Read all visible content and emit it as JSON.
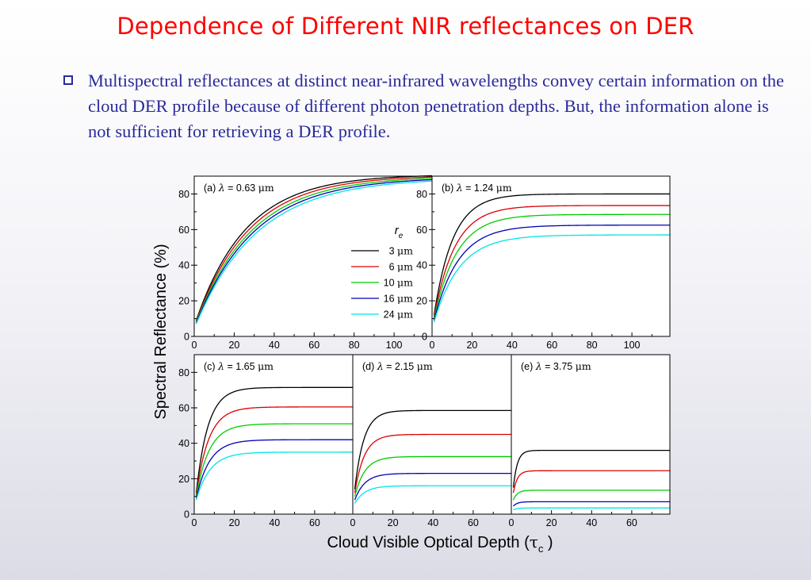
{
  "slide": {
    "title": "Dependence of Different NIR reflectances on DER",
    "bullet": "Multispectral reflectances at distinct near-infrared wavelengths convey certain information on the cloud DER profile because of different photon penetration depths. But, the information alone is not sufficient for retrieving a DER profile."
  },
  "figure": {
    "ylabel": "Spectral  Reflectance  (%)",
    "xlabel_main": "Cloud Visible Optical Depth (",
    "xlabel_tau": "τ",
    "xlabel_sub": "c",
    "xlabel_close": " )",
    "legend_title": "r",
    "legend_title_sub": "e"
  },
  "chart_data": [
    {
      "type": "line",
      "panel": "(a)",
      "lambda": "0.63",
      "unit": "μm",
      "title": "(a) λ = 0.63 μm",
      "xlim": [
        0,
        119
      ],
      "ylim": [
        0,
        90
      ],
      "xticks": [
        0,
        20,
        40,
        60,
        80,
        100
      ],
      "yticks": [
        0,
        20,
        40,
        60,
        80
      ],
      "legend_placement": "center-right",
      "series": [
        {
          "name": "3 μm",
          "color": "#000000",
          "plateau": 91.0,
          "k": 0.0395,
          "y0": 9.0
        },
        {
          "name": "6 μm",
          "color": "#dd0000",
          "plateau": 90.5,
          "k": 0.0375,
          "y0": 8.5
        },
        {
          "name": "10 μm",
          "color": "#00cc00",
          "plateau": 90.0,
          "k": 0.0355,
          "y0": 8.0
        },
        {
          "name": "16 μm",
          "color": "#0000bb",
          "plateau": 89.5,
          "k": 0.034,
          "y0": 7.5
        },
        {
          "name": "24 μm",
          "color": "#00e5e5",
          "plateau": 89.0,
          "k": 0.0325,
          "y0": 7.0
        }
      ]
    },
    {
      "type": "line",
      "panel": "(b)",
      "lambda": "1.24",
      "unit": "μm",
      "title": "(b) λ = 1.24 μm",
      "xlim": [
        0,
        119
      ],
      "ylim": [
        0,
        90
      ],
      "xticks": [
        0,
        20,
        40,
        60,
        80,
        100
      ],
      "yticks": [
        0,
        20,
        40,
        60,
        80
      ],
      "series": [
        {
          "name": "3 μm",
          "color": "#000000",
          "plateau": 80.0,
          "k": 0.105,
          "y0": 12.0
        },
        {
          "name": "6 μm",
          "color": "#dd0000",
          "plateau": 73.5,
          "k": 0.095,
          "y0": 11.0
        },
        {
          "name": "10 μm",
          "color": "#00cc00",
          "plateau": 68.5,
          "k": 0.088,
          "y0": 10.0
        },
        {
          "name": "16 μm",
          "color": "#0000bb",
          "plateau": 62.5,
          "k": 0.082,
          "y0": 9.0
        },
        {
          "name": "24 μm",
          "color": "#00e5e5",
          "plateau": 57.0,
          "k": 0.078,
          "y0": 8.0
        }
      ]
    },
    {
      "type": "line",
      "panel": "(c)",
      "lambda": "1.65",
      "unit": "μm",
      "title": "(c) λ = 1.65 μm",
      "xlim": [
        0,
        79
      ],
      "ylim": [
        0,
        90
      ],
      "xticks": [
        0,
        20,
        40,
        60
      ],
      "yticks": [
        0,
        20,
        40,
        60,
        80
      ],
      "series": [
        {
          "name": "3 μm",
          "color": "#000000",
          "plateau": 71.5,
          "k": 0.17,
          "y0": 12.0
        },
        {
          "name": "6 μm",
          "color": "#dd0000",
          "plateau": 60.5,
          "k": 0.16,
          "y0": 11.0
        },
        {
          "name": "10 μm",
          "color": "#00cc00",
          "plateau": 51.0,
          "k": 0.155,
          "y0": 10.0
        },
        {
          "name": "16 μm",
          "color": "#0000bb",
          "plateau": 42.0,
          "k": 0.15,
          "y0": 9.0
        },
        {
          "name": "24 μm",
          "color": "#00e5e5",
          "plateau": 35.0,
          "k": 0.145,
          "y0": 8.0
        }
      ]
    },
    {
      "type": "line",
      "panel": "(d)",
      "lambda": "2.15",
      "unit": "μm",
      "title": "(d) λ = 2.15 μm",
      "xlim": [
        0,
        79
      ],
      "ylim": [
        0,
        90
      ],
      "xticks": [
        0,
        20,
        40,
        60
      ],
      "yticks": [],
      "series": [
        {
          "name": "3 μm",
          "color": "#000000",
          "plateau": 58.5,
          "k": 0.22,
          "y0": 14.0
        },
        {
          "name": "6 μm",
          "color": "#dd0000",
          "plateau": 45.0,
          "k": 0.21,
          "y0": 12.0
        },
        {
          "name": "10 μm",
          "color": "#00cc00",
          "plateau": 32.5,
          "k": 0.2,
          "y0": 10.0
        },
        {
          "name": "16 μm",
          "color": "#0000bb",
          "plateau": 23.0,
          "k": 0.2,
          "y0": 8.0
        },
        {
          "name": "24 μm",
          "color": "#00e5e5",
          "plateau": 16.0,
          "k": 0.2,
          "y0": 6.0
        }
      ]
    },
    {
      "type": "line",
      "panel": "(e)",
      "lambda": "3.75",
      "unit": "μm",
      "title": "(e) λ = 3.75 μm",
      "xlim": [
        0,
        79
      ],
      "ylim": [
        0,
        90
      ],
      "xticks": [
        0,
        20,
        40,
        60
      ],
      "yticks": [],
      "series": [
        {
          "name": "3 μm",
          "color": "#000000",
          "plateau": 36.0,
          "k": 0.5,
          "y0": 15.0
        },
        {
          "name": "6 μm",
          "color": "#dd0000",
          "plateau": 24.5,
          "k": 0.5,
          "y0": 12.0
        },
        {
          "name": "10 μm",
          "color": "#00cc00",
          "plateau": 13.5,
          "k": 0.5,
          "y0": 8.0
        },
        {
          "name": "16 μm",
          "color": "#0000bb",
          "plateau": 7.0,
          "k": 0.5,
          "y0": 4.5
        },
        {
          "name": "24 μm",
          "color": "#00e5e5",
          "plateau": 3.5,
          "k": 0.5,
          "y0": 2.5
        }
      ]
    }
  ]
}
